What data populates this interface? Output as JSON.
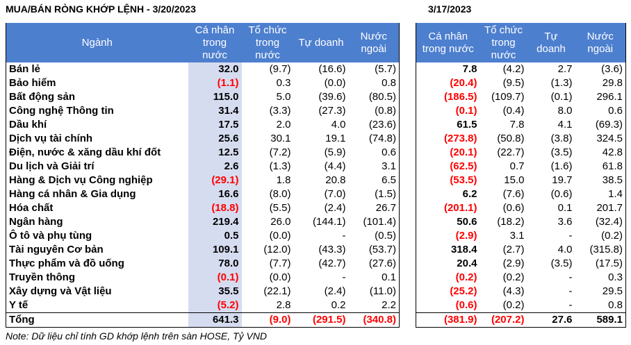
{
  "title_left": "MUA/BÁN RÒNG KHỚP LỆNH - 3/20/2023",
  "title_right": "3/17/2023",
  "headers": {
    "sector": "Ngành",
    "individual": "Cá nhân trong nước",
    "individual_right": "Cá nhân trong nước",
    "institution": "Tổ chức trong nước",
    "proprietary": "Tự doanh",
    "foreign": "Nước ngoài"
  },
  "rows": [
    {
      "sector": "Bán lẻ",
      "d1": [
        "32.0",
        "(9.7)",
        "(16.6)",
        "(5.7)"
      ],
      "d2": [
        "7.8",
        "(4.2)",
        "2.7",
        "(3.6)"
      ]
    },
    {
      "sector": "Bảo hiểm",
      "d1": [
        "(1.1)",
        "0.3",
        "(0.0)",
        "0.8"
      ],
      "d2": [
        "(20.4)",
        "(9.5)",
        "(1.3)",
        "29.8"
      ]
    },
    {
      "sector": "Bất động sản",
      "d1": [
        "115.0",
        "5.0",
        "(39.6)",
        "(80.5)"
      ],
      "d2": [
        "(186.5)",
        "(109.7)",
        "(0.1)",
        "296.1"
      ]
    },
    {
      "sector": "Công nghệ Thông tin",
      "d1": [
        "31.4",
        "(3.3)",
        "(27.3)",
        "(0.8)"
      ],
      "d2": [
        "(0.1)",
        "(0.4)",
        "8.0",
        "0.6"
      ]
    },
    {
      "sector": "Dầu khí",
      "d1": [
        "17.5",
        "2.0",
        "4.0",
        "(23.6)"
      ],
      "d2": [
        "61.5",
        "7.8",
        "4.1",
        "(69.3)"
      ]
    },
    {
      "sector": "Dịch vụ tài chính",
      "d1": [
        "25.6",
        "30.1",
        "19.1",
        "(74.8)"
      ],
      "d2": [
        "(273.8)",
        "(50.8)",
        "(3.8)",
        "324.5"
      ]
    },
    {
      "sector": "Điện, nước & xăng dầu khí đốt",
      "d1": [
        "12.5",
        "(7.2)",
        "(5.9)",
        "0.6"
      ],
      "d2": [
        "(20.1)",
        "(22.7)",
        "(3.5)",
        "42.8"
      ]
    },
    {
      "sector": "Du lịch và Giải trí",
      "d1": [
        "2.6",
        "(1.3)",
        "(4.4)",
        "3.1"
      ],
      "d2": [
        "(62.5)",
        "0.7",
        "(1.6)",
        "61.8"
      ]
    },
    {
      "sector": "Hàng & Dịch vụ Công nghiệp",
      "d1": [
        "(29.1)",
        "1.8",
        "20.8",
        "6.5"
      ],
      "d2": [
        "(53.5)",
        "15.0",
        "19.7",
        "38.5"
      ]
    },
    {
      "sector": "Hàng cá nhân & Gia dụng",
      "d1": [
        "16.6",
        "(8.0)",
        "(7.0)",
        "(1.5)"
      ],
      "d2": [
        "6.2",
        "(7.6)",
        "(0.6)",
        "1.4"
      ]
    },
    {
      "sector": "Hóa chất",
      "d1": [
        "(18.8)",
        "(5.5)",
        "(2.4)",
        "26.7"
      ],
      "d2": [
        "(201.1)",
        "(0.6)",
        "0.1",
        "201.7"
      ]
    },
    {
      "sector": "Ngân hàng",
      "d1": [
        "219.4",
        "26.0",
        "(144.1)",
        "(101.4)"
      ],
      "d2": [
        "50.6",
        "(18.2)",
        "3.6",
        "(32.4)"
      ]
    },
    {
      "sector": "Ô tô và phụ tùng",
      "d1": [
        "0.5",
        "(0.0)",
        "-",
        "(0.5)"
      ],
      "d2": [
        "(2.9)",
        "3.1",
        "-",
        "(0.2)"
      ]
    },
    {
      "sector": "Tài nguyên Cơ bản",
      "d1": [
        "109.1",
        "(12.0)",
        "(43.3)",
        "(53.7)"
      ],
      "d2": [
        "318.4",
        "(2.7)",
        "4.0",
        "(315.8)"
      ]
    },
    {
      "sector": "Thực phẩm và đồ uống",
      "d1": [
        "78.0",
        "(7.7)",
        "(42.7)",
        "(27.6)"
      ],
      "d2": [
        "20.4",
        "(2.9)",
        "(3.5)",
        "(17.5)"
      ]
    },
    {
      "sector": "Truyền thông",
      "d1": [
        "(0.1)",
        "(0.0)",
        "-",
        "0.1"
      ],
      "d2": [
        "(0.2)",
        "(0.2)",
        "-",
        "0.3"
      ]
    },
    {
      "sector": "Xây dựng và Vật liệu",
      "d1": [
        "35.5",
        "(22.1)",
        "(2.4)",
        "(11.0)"
      ],
      "d2": [
        "(25.2)",
        "(4.3)",
        "-",
        "29.5"
      ]
    },
    {
      "sector": "Y tế",
      "d1": [
        "(5.2)",
        "2.8",
        "0.2",
        "2.2"
      ],
      "d2": [
        "(0.6)",
        "(0.2)",
        "-",
        "0.8"
      ]
    }
  ],
  "total": {
    "sector": "Tổng",
    "d1": [
      "641.3",
      "(9.0)",
      "(291.5)",
      "(340.8)"
    ],
    "d2": [
      "(381.9)",
      "(207.2)",
      "27.6",
      "589.1"
    ]
  },
  "note": "Note: Dữ liệu chỉ tính GD khớp lệnh trên sàn HOSE, Tỷ VND",
  "colors": {
    "header_bg": "#4d7fcf",
    "highlight_col": "#d6dcf0",
    "negative": "#ff0000"
  }
}
